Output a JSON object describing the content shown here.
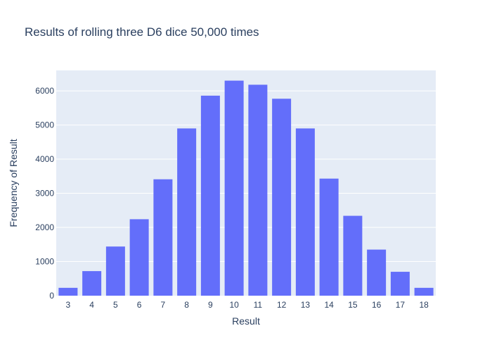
{
  "chart_data": {
    "type": "bar",
    "title": "Results of rolling three D6 dice 50,000 times",
    "xlabel": "Result",
    "ylabel": "Frequency of Result",
    "categories": [
      "3",
      "4",
      "5",
      "6",
      "7",
      "8",
      "9",
      "10",
      "11",
      "12",
      "13",
      "14",
      "15",
      "16",
      "17",
      "18"
    ],
    "values": [
      230,
      720,
      1440,
      2240,
      3410,
      4900,
      5860,
      6300,
      6180,
      5770,
      4900,
      3430,
      2340,
      1350,
      700,
      230
    ],
    "ylim": [
      0,
      6600
    ],
    "yticks": [
      "0",
      "1000",
      "2000",
      "3000",
      "4000",
      "5000",
      "6000"
    ],
    "grid": true,
    "legend": "none",
    "colors": {
      "bar": "#636efa",
      "plot_bg": "#e5ecf6",
      "paper_bg": "#ffffff",
      "text": "#2a3f5f",
      "grid": "#ffffff"
    }
  }
}
